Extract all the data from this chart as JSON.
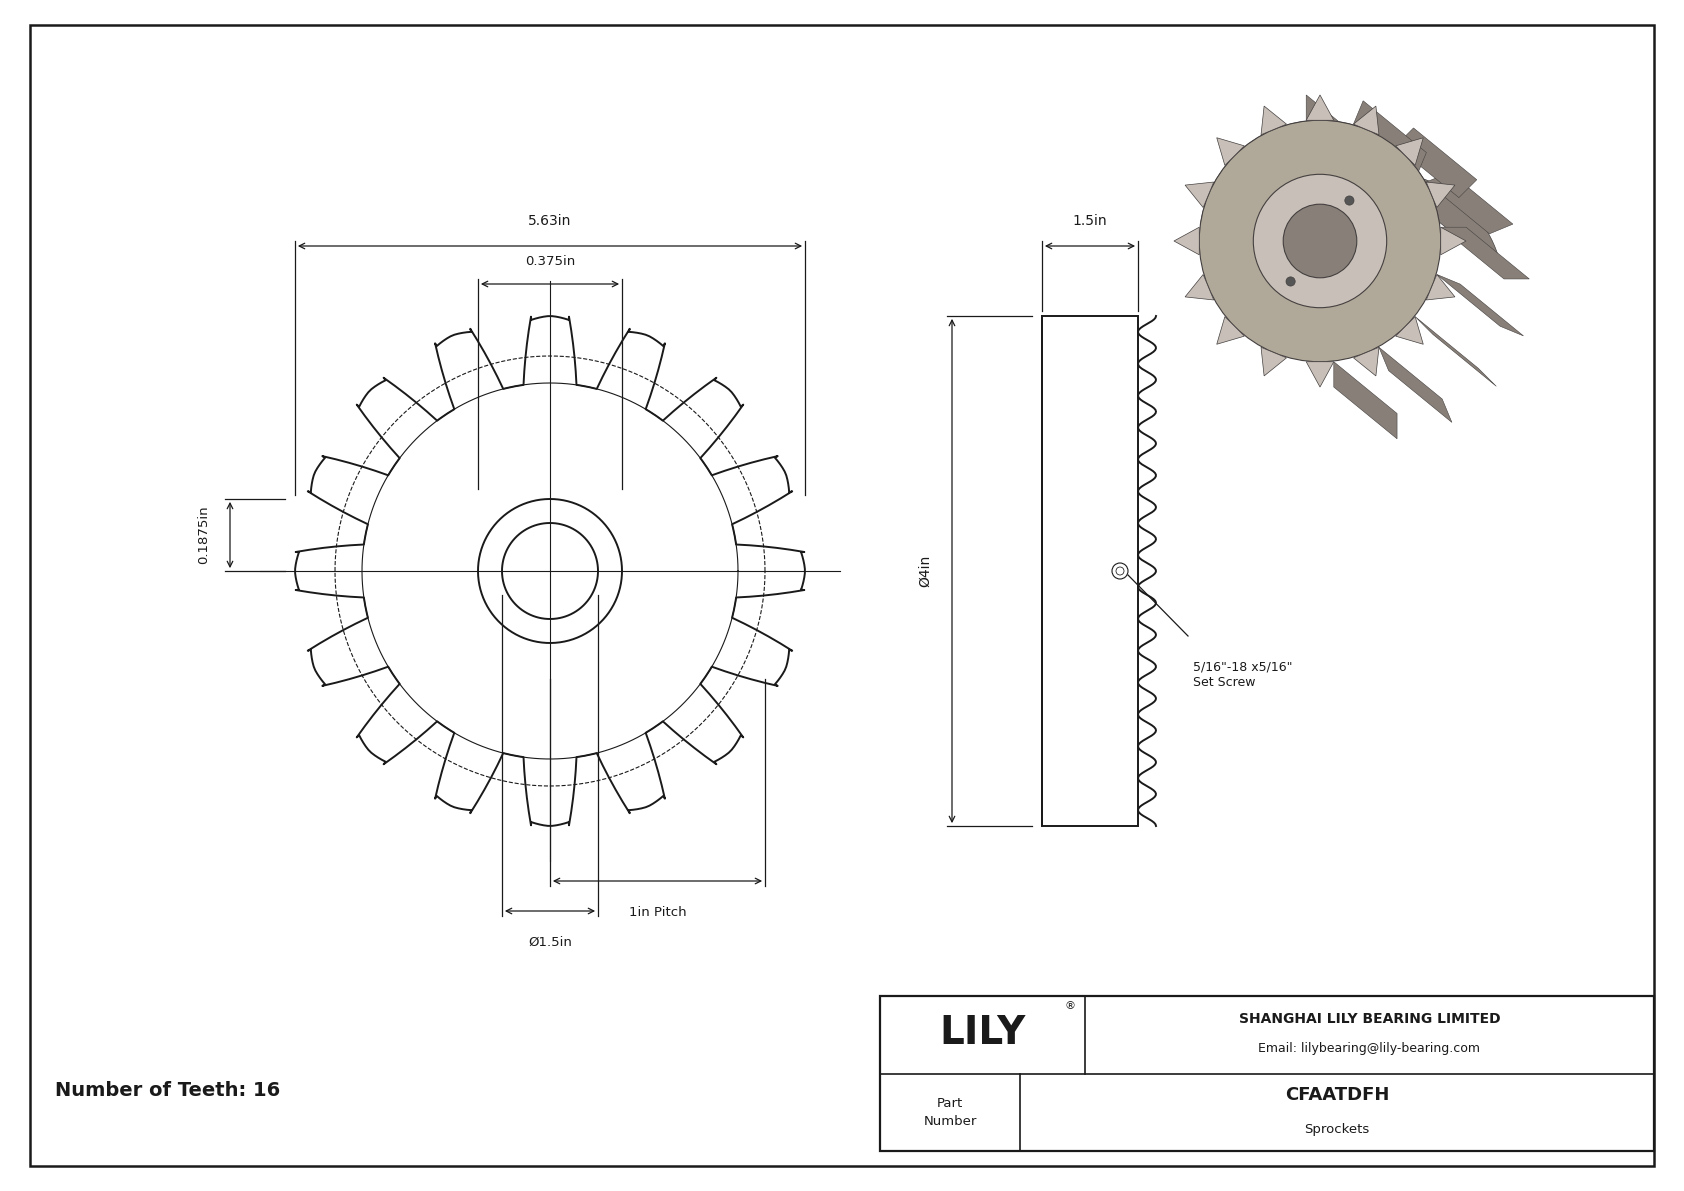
{
  "bg_color": "#ffffff",
  "line_color": "#1a1a1a",
  "title_block": {
    "company": "SHANGHAI LILY BEARING LIMITED",
    "email": "Email: lilybearing@lily-bearing.com",
    "part_number_label": "Part\nNumber",
    "part_number": "CFAATDFH",
    "category": "Sprockets"
  },
  "num_teeth_label": "Number of Teeth: 16",
  "dims": {
    "outer_dia_label": "5.63in",
    "hub_dia_label": "0.375in",
    "hub_offset_label": "0.1875in",
    "pitch_label": "1in Pitch",
    "bore_dia_label": "Ø1.5in",
    "side_width_label": "1.5in",
    "side_height_label": "Ø4in",
    "set_screw_label": "5/16\"-18 x5/16\"\nSet Screw"
  }
}
